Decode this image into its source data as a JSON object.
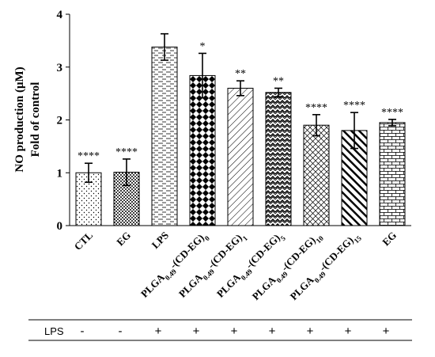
{
  "chart_data": {
    "type": "bar",
    "ylabel": [
      "NO production (μM)",
      "Fold of control"
    ],
    "ylim": [
      0,
      4
    ],
    "yticks": [
      0,
      1,
      2,
      3,
      4
    ],
    "categories": [
      {
        "main": "CTL",
        "sub": ""
      },
      {
        "main": "EG",
        "sub": ""
      },
      {
        "main": "LPS",
        "sub": ""
      },
      {
        "main": "PLGA",
        "sub1": "0.49",
        "mid": "-(CD-EG)",
        "sub2": "0"
      },
      {
        "main": "PLGA",
        "sub1": "0.49",
        "mid": "-(CD-EG)",
        "sub2": "1"
      },
      {
        "main": "PLGA",
        "sub1": "0.49",
        "mid": "-(CD-EG)",
        "sub2": "5"
      },
      {
        "main": "PLGA",
        "sub1": "0.49",
        "mid": "-(CD-EG)",
        "sub2": "10"
      },
      {
        "main": "PLGA",
        "sub1": "0.49",
        "mid": "-(CD-EG)",
        "sub2": "15"
      },
      {
        "main": "EG",
        "sub": ""
      }
    ],
    "values": [
      1.0,
      1.01,
      3.38,
      2.84,
      2.6,
      2.52,
      1.9,
      1.8,
      1.95
    ],
    "errors": [
      0.18,
      0.25,
      0.25,
      0.42,
      0.14,
      0.08,
      0.2,
      0.34,
      0.06
    ],
    "significance": [
      "****",
      "****",
      "",
      "*",
      "**",
      "**",
      "****",
      "****",
      "****"
    ],
    "patterns": [
      "dots-sparse",
      "dots-dense",
      "horizontal-dashes",
      "diamonds",
      "diagonal-light",
      "zigzag",
      "crosshatch-diag",
      "diagonal-heavy",
      "bricks"
    ],
    "lps_label": "LPS",
    "lps_row": [
      "-",
      "-",
      "+",
      "+",
      "+",
      "+",
      "+",
      "+",
      "+"
    ]
  }
}
